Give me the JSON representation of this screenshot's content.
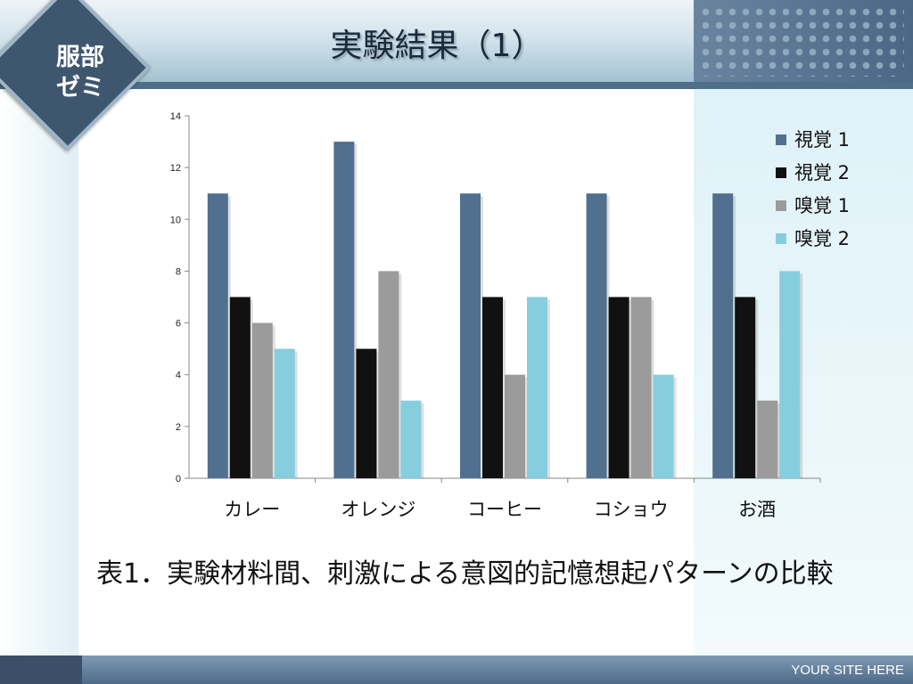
{
  "badge": {
    "text": "服部\nゼミ"
  },
  "slide_title": "実験結果（1）",
  "caption": "表1．実験材料間、刺激による意図的記憶想起パターンの比較",
  "footer": "YOUR SITE HERE",
  "colors": {
    "series": [
      "#51708f",
      "#111111",
      "#9b9b9b",
      "#86cede"
    ],
    "axis": "#888888"
  },
  "chart_data": {
    "type": "bar",
    "categories": [
      "カレー",
      "オレンジ",
      "コーヒー",
      "コショウ",
      "お酒"
    ],
    "series": [
      {
        "name": "視覚 1",
        "values": [
          11,
          13,
          11,
          11,
          11
        ]
      },
      {
        "name": "視覚 2",
        "values": [
          7,
          5,
          7,
          7,
          7
        ]
      },
      {
        "name": "嗅覚 1",
        "values": [
          6,
          8,
          4,
          7,
          3
        ]
      },
      {
        "name": "嗅覚 2",
        "values": [
          5,
          3,
          7,
          4,
          8
        ]
      }
    ],
    "y_ticks": [
      "0",
      "2",
      "4",
      "6",
      "8",
      "10",
      "12",
      "14"
    ],
    "ylim": [
      0,
      14
    ],
    "grid": false,
    "legend_position": "top-right"
  }
}
